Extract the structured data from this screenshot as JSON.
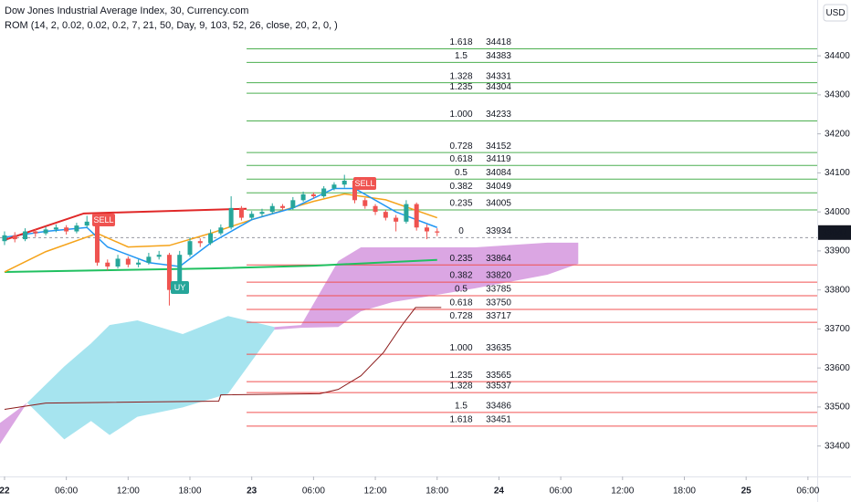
{
  "chart_data": {
    "type": "candlestick",
    "title": "Dow Jones Industrial Average Index, 30, Currency.com",
    "indicator": "ROM (14, 2, 0.02, 0.02, 0.2, 7, 21, 50, Day, 9, 103, 52, 26, close, 20, 2, 0, )",
    "currency": "USD",
    "last_price": 33947,
    "up_color": "#26a69a",
    "down_color": "#ef5350",
    "ylim": [
      33322,
      34543
    ],
    "yticks": [
      33400,
      33500,
      33600,
      33700,
      33800,
      33900,
      34000,
      34100,
      34200,
      34300,
      34400
    ],
    "xlim": [
      -0.44,
      78.9
    ],
    "xticks": [
      {
        "value": 0,
        "label": "22"
      },
      {
        "value": 6,
        "label": "06:00"
      },
      {
        "value": 12,
        "label": "12:00"
      },
      {
        "value": 18,
        "label": "18:00"
      },
      {
        "value": 24,
        "label": "23"
      },
      {
        "value": 30,
        "label": "06:00"
      },
      {
        "value": 36,
        "label": "12:00"
      },
      {
        "value": 42,
        "label": "18:00"
      },
      {
        "value": 48,
        "label": "24"
      },
      {
        "value": 54,
        "label": "06:00"
      },
      {
        "value": 60,
        "label": "12:00"
      },
      {
        "value": 66,
        "label": "18:00"
      },
      {
        "value": 72,
        "label": "25"
      },
      {
        "value": 78,
        "label": "06:00"
      }
    ],
    "x": [
      0,
      1,
      2,
      3,
      4,
      5,
      6,
      7,
      8,
      9,
      10,
      11,
      12,
      13,
      14,
      15,
      16,
      17,
      18,
      19,
      20,
      21,
      22,
      23,
      24,
      25,
      26,
      27,
      28,
      29,
      30,
      31,
      32,
      33,
      34,
      35,
      36,
      37,
      38,
      39,
      40,
      41,
      42
    ],
    "ohlc": [
      [
        33925,
        33950,
        33915,
        33940
      ],
      [
        33940,
        33948,
        33922,
        33930
      ],
      [
        33930,
        33958,
        33925,
        33950
      ],
      [
        33950,
        33956,
        33936,
        33945
      ],
      [
        33945,
        33962,
        33940,
        33955
      ],
      [
        33955,
        33968,
        33948,
        33960
      ],
      [
        33960,
        33966,
        33942,
        33950
      ],
      [
        33950,
        33972,
        33945,
        33965
      ],
      [
        33965,
        33990,
        33960,
        33975
      ],
      [
        33975,
        33982,
        33862,
        33870
      ],
      [
        33870,
        33878,
        33850,
        33860
      ],
      [
        33860,
        33890,
        33855,
        33880
      ],
      [
        33880,
        33886,
        33858,
        33865
      ],
      [
        33865,
        33878,
        33858,
        33870
      ],
      [
        33870,
        33895,
        33865,
        33885
      ],
      [
        33885,
        33900,
        33878,
        33890
      ],
      [
        33890,
        33895,
        33760,
        33800
      ],
      [
        33800,
        33900,
        33795,
        33890
      ],
      [
        33890,
        33935,
        33885,
        33925
      ],
      [
        33925,
        33932,
        33910,
        33920
      ],
      [
        33920,
        33955,
        33915,
        33945
      ],
      [
        33945,
        33968,
        33940,
        33960
      ],
      [
        33960,
        34040,
        33955,
        34010
      ],
      [
        34010,
        34015,
        33978,
        33985
      ],
      [
        33985,
        34002,
        33980,
        33995
      ],
      [
        33995,
        34008,
        33988,
        34000
      ],
      [
        34000,
        34022,
        33995,
        34015
      ],
      [
        34015,
        34020,
        34004,
        34010
      ],
      [
        34010,
        34038,
        34005,
        34030
      ],
      [
        34030,
        34052,
        34026,
        34045
      ],
      [
        34045,
        34050,
        34034,
        34040
      ],
      [
        34040,
        34066,
        34036,
        34060
      ],
      [
        34060,
        34076,
        34055,
        34070
      ],
      [
        34070,
        34095,
        34062,
        34080
      ],
      [
        34080,
        34085,
        34022,
        34030
      ],
      [
        34030,
        34036,
        34008,
        34015
      ],
      [
        34015,
        34020,
        33992,
        34000
      ],
      [
        34000,
        34005,
        33978,
        33985
      ],
      [
        33985,
        33992,
        33950,
        33975
      ],
      [
        33975,
        34030,
        33970,
        34020
      ],
      [
        34020,
        34024,
        33952,
        33960
      ],
      [
        33960,
        33968,
        33930,
        33950
      ],
      [
        33950,
        33958,
        33938,
        33947
      ]
    ],
    "clouds": [
      {
        "color": "#a6e4ef",
        "x": [
          2.2,
          5.8,
          8.4,
          10.2,
          12.9,
          17.3,
          21.7,
          26.2
        ],
        "upper": [
          33511,
          33604,
          33663,
          33710,
          33722,
          33687,
          33733,
          33705
        ],
        "lower": [
          33511,
          33417,
          33464,
          33428,
          33475,
          33499,
          33534,
          33698
        ]
      },
      {
        "color": "#dba6e3",
        "x": [
          -0.44,
          2.2
        ],
        "upper": [
          33459,
          33511
        ],
        "lower": [
          33405,
          33511
        ]
      },
      {
        "color": "#dba6e3",
        "x": [
          26.2,
          28.8,
          32.4,
          34.6,
          37.7,
          40.3,
          45.7,
          52.7,
          55.7
        ],
        "upper": [
          33705,
          33710,
          33874,
          33909,
          33909,
          33909,
          33909,
          33921,
          33921
        ],
        "lower": [
          33698,
          33703,
          33705,
          33745,
          33769,
          33780,
          33804,
          33839,
          33867
        ]
      }
    ],
    "lines": [
      {
        "color": "#8b1a1a",
        "width": 1,
        "x": [
          0,
          4,
          20.8,
          21,
          30.6,
          32.4,
          34.6,
          36.8,
          38.6,
          39.9,
          42.4
        ],
        "values": [
          33494,
          33510,
          33515,
          33531,
          33534,
          33545,
          33580,
          33640,
          33710,
          33755,
          33755
        ]
      },
      {
        "color": "#20c060",
        "width": 2,
        "x": [
          0,
          20,
          30,
          42
        ],
        "values": [
          33846,
          33855,
          33862,
          33877
        ]
      },
      {
        "color": "#f5a31a",
        "width": 1.5,
        "x": [
          0,
          4,
          9,
          12,
          16,
          20,
          24,
          30,
          33,
          37,
          42
        ],
        "values": [
          33846,
          33898,
          33945,
          33910,
          33914,
          33945,
          33980,
          34027,
          34046,
          34031,
          33985
        ]
      },
      {
        "color": "#2196f3",
        "width": 1.5,
        "x": [
          0,
          4,
          8,
          10,
          14,
          17,
          20,
          24,
          28,
          32,
          34,
          38,
          42
        ],
        "values": [
          33935,
          33950,
          33960,
          33910,
          33870,
          33860,
          33920,
          33980,
          34010,
          34060,
          34060,
          34000,
          33960
        ]
      },
      {
        "color": "#e02828",
        "width": 2,
        "x": [
          0,
          7.7,
          23.5
        ],
        "values": [
          33928,
          33996,
          34008
        ]
      }
    ],
    "fib_start": 23.5,
    "fib_levels": [
      {
        "ratio": "1.618",
        "price": 34418,
        "color": "#4caf50"
      },
      {
        "ratio": "1.5",
        "price": 34383,
        "color": "#4caf50"
      },
      {
        "ratio": "1.328",
        "price": 34331,
        "color": "#4caf50"
      },
      {
        "ratio": "1.235",
        "price": 34304,
        "color": "#4caf50"
      },
      {
        "ratio": "1.000",
        "price": 34233,
        "color": "#4caf50"
      },
      {
        "ratio": "0.728",
        "price": 34152,
        "color": "#4caf50"
      },
      {
        "ratio": "0.618",
        "price": 34119,
        "color": "#4caf50"
      },
      {
        "ratio": "0.5",
        "price": 34084,
        "color": "#4caf50"
      },
      {
        "ratio": "0.382",
        "price": 34049,
        "color": "#4caf50"
      },
      {
        "ratio": "0.235",
        "price": 34005,
        "color": "#4caf50"
      },
      {
        "ratio": "0",
        "price": 33934,
        "color": "#9598a1"
      },
      {
        "ratio": "0.235",
        "price": 33864,
        "color": "#f05050"
      },
      {
        "ratio": "0.382",
        "price": 33820,
        "color": "#f05050"
      },
      {
        "ratio": "0.5",
        "price": 33785,
        "color": "#f05050"
      },
      {
        "ratio": "0.618",
        "price": 33750,
        "color": "#f05050"
      },
      {
        "ratio": "0.728",
        "price": 33717,
        "color": "#f05050"
      },
      {
        "ratio": "1.000",
        "price": 33635,
        "color": "#f05050"
      },
      {
        "ratio": "1.235",
        "price": 33565,
        "color": "#f05050"
      },
      {
        "ratio": "1.328",
        "price": 33537,
        "color": "#f05050"
      },
      {
        "ratio": "1.5",
        "price": 33486,
        "color": "#f05050"
      },
      {
        "ratio": "1.618",
        "price": 33451,
        "color": "#f05050"
      }
    ],
    "annotations": [
      "SELL",
      "SELL",
      "UY"
    ]
  }
}
